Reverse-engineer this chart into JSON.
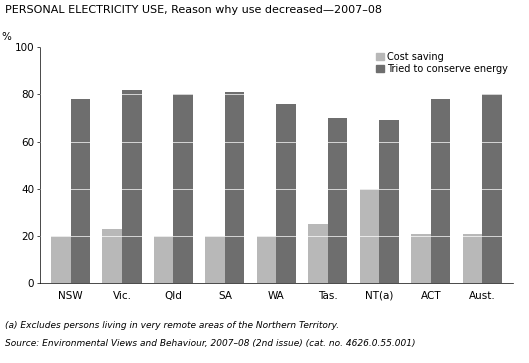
{
  "title": "PERSONAL ELECTRICITY USE, Reason why use decreased—2007–08",
  "ylabel": "%",
  "categories": [
    "NSW",
    "Vic.",
    "Qld",
    "SA",
    "WA",
    "Tas.",
    "NT(a)",
    "ACT",
    "Aust."
  ],
  "cost_saving": [
    20,
    23,
    20,
    20,
    20,
    25,
    40,
    21,
    21
  ],
  "conserve_energy": [
    78,
    82,
    80,
    81,
    76,
    70,
    69,
    78,
    80
  ],
  "cost_saving_color": "#b8b8b8",
  "conserve_energy_color": "#6e6e6e",
  "ylim": [
    0,
    100
  ],
  "yticks": [
    0,
    20,
    40,
    60,
    80,
    100
  ],
  "legend_cost": "Cost saving",
  "legend_conserve": "Tried to conserve energy",
  "footnote": "(a) Excludes persons living in very remote areas of the Northern Territory.",
  "source": "Source: Environmental Views and Behaviour, 2007–08 (2nd issue) (cat. no. 4626.0.55.001)",
  "bar_width": 0.38,
  "title_fontsize": 8,
  "axis_fontsize": 7.5,
  "tick_fontsize": 7.5,
  "legend_fontsize": 7,
  "footnote_fontsize": 6.5
}
